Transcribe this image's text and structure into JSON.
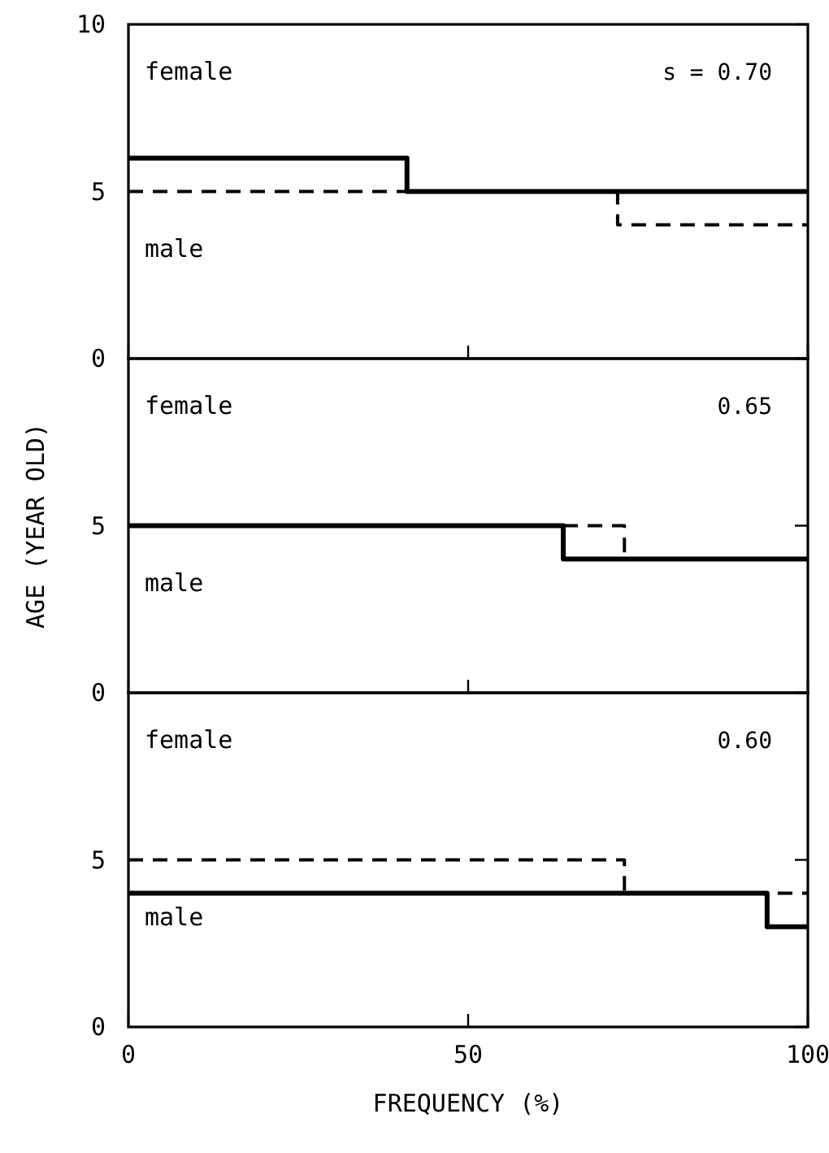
{
  "chart_data": [
    {
      "type": "step",
      "xlim": [
        0,
        100
      ],
      "xticks": [
        0,
        50,
        100
      ],
      "ylim": [
        0,
        10
      ],
      "yticks": [
        0,
        5,
        10
      ],
      "tick_labels": "y",
      "annotations": [
        "female",
        "male",
        "s = 0.70"
      ],
      "series": [
        {
          "color": "#000000",
          "line_style": "solid",
          "x": [
            0,
            41,
            100
          ],
          "values": [
            6,
            5,
            5
          ]
        },
        {
          "color": "#000000",
          "line_style": "dashed",
          "x": [
            0,
            72,
            100
          ],
          "values": [
            5,
            4,
            4
          ]
        }
      ]
    },
    {
      "type": "step",
      "xlim": [
        0,
        100
      ],
      "xticks": [
        0,
        50,
        100
      ],
      "ylim": [
        0,
        10
      ],
      "yticks": [
        0,
        5,
        {
          "value": 10,
          "label": null
        }
      ],
      "tick_labels": "y",
      "ylabel": "AGE (YEAR OLD)",
      "annotations": [
        "female",
        "male",
        "0.65"
      ],
      "series": [
        {
          "color": "#000000",
          "line_style": "solid",
          "x": [
            0,
            64,
            100
          ],
          "values": [
            5,
            4,
            4
          ]
        },
        {
          "color": "#000000",
          "line_style": "dashed",
          "x": [
            64,
            73,
            100
          ],
          "values": [
            5,
            4,
            4
          ]
        }
      ]
    },
    {
      "type": "step",
      "xlim": [
        0,
        100
      ],
      "xticks": [
        0,
        50,
        100
      ],
      "ylim": [
        0,
        10
      ],
      "yticks": [
        0,
        5,
        {
          "value": 10,
          "label": null
        }
      ],
      "xlabel": "FREQUENCY (%)",
      "annotations": [
        "female",
        "male",
        "0.60"
      ],
      "series": [
        {
          "color": "#000000",
          "line_style": "dashed",
          "x": [
            0,
            73,
            100
          ],
          "values": [
            5,
            4,
            4
          ]
        },
        {
          "color": "#000000",
          "line_style": "solid",
          "x": [
            0,
            94,
            100
          ],
          "values": [
            4,
            3,
            3
          ]
        }
      ]
    }
  ]
}
